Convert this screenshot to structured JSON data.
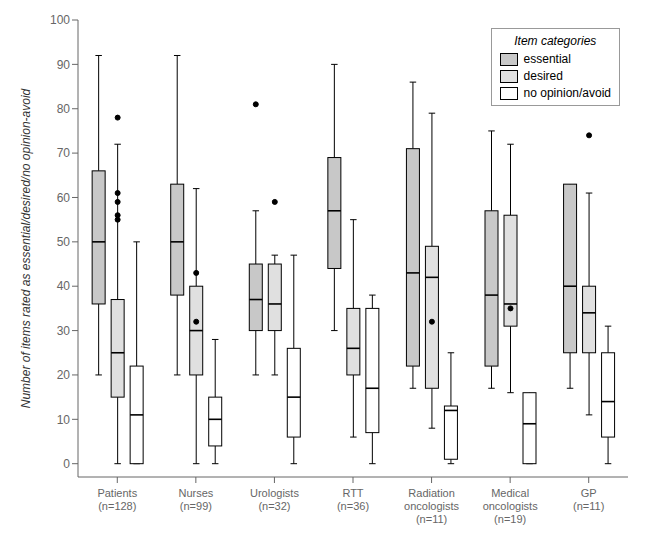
{
  "chart_data": {
    "type": "box",
    "categories": [
      "Patients\n(n=128)",
      "Nurses\n(n=99)",
      "Urologists\n(n=32)",
      "RTT\n(n=36)",
      "Radiation\noncologists\n(n=11)",
      "Medical\noncologists\n(n=19)",
      "GP\n(n=11)"
    ],
    "series": [
      {
        "name": "essential",
        "color": "#c8c8c8",
        "values": [
          {
            "q1": 36,
            "median": 50,
            "q3": 66,
            "whislo": 20,
            "whishi": 92,
            "fliers": []
          },
          {
            "q1": 38,
            "median": 50,
            "q3": 63,
            "whislo": 20,
            "whishi": 92,
            "fliers": []
          },
          {
            "q1": 30,
            "median": 37,
            "q3": 45,
            "whislo": 20,
            "whishi": 57,
            "fliers": [
              81
            ]
          },
          {
            "q1": 44,
            "median": 57,
            "q3": 69,
            "whislo": 30,
            "whishi": 90,
            "fliers": []
          },
          {
            "q1": 22,
            "median": 43,
            "q3": 71,
            "whislo": 17,
            "whishi": 86,
            "fliers": []
          },
          {
            "q1": 22,
            "median": 38,
            "q3": 57,
            "whislo": 17,
            "whishi": 75,
            "fliers": []
          },
          {
            "q1": 25,
            "median": 40,
            "q3": 63,
            "whislo": 17,
            "whishi": 61,
            "fliers": []
          }
        ]
      },
      {
        "name": "desired",
        "color": "#e0e0e0",
        "values": [
          {
            "q1": 15,
            "median": 25,
            "q3": 37,
            "whislo": 0,
            "whishi": 72,
            "fliers": [
              78,
              61,
              59,
              56,
              55
            ]
          },
          {
            "q1": 20,
            "median": 30,
            "q3": 40,
            "whislo": 0,
            "whishi": 62,
            "fliers": [
              43,
              32
            ]
          },
          {
            "q1": 30,
            "median": 36,
            "q3": 45,
            "whislo": 20,
            "whishi": 47,
            "fliers": [
              59
            ]
          },
          {
            "q1": 20,
            "median": 26,
            "q3": 35,
            "whislo": 6,
            "whishi": 55,
            "fliers": []
          },
          {
            "q1": 17,
            "median": 42,
            "q3": 49,
            "whislo": 8,
            "whishi": 79,
            "fliers": [
              32
            ]
          },
          {
            "q1": 31,
            "median": 36,
            "q3": 56,
            "whislo": 16,
            "whishi": 72,
            "fliers": [
              35
            ]
          },
          {
            "q1": 25,
            "median": 34,
            "q3": 40,
            "whislo": 11,
            "whishi": 61,
            "fliers": [
              74
            ]
          }
        ]
      },
      {
        "name": "no opinion/avoid",
        "color": "#ffffff",
        "values": [
          {
            "q1": 0,
            "median": 11,
            "q3": 22,
            "whislo": 0,
            "whishi": 50,
            "fliers": []
          },
          {
            "q1": 4,
            "median": 10,
            "q3": 15,
            "whislo": 0,
            "whishi": 28,
            "fliers": []
          },
          {
            "q1": 6,
            "median": 15,
            "q3": 26,
            "whislo": 0,
            "whishi": 47,
            "fliers": []
          },
          {
            "q1": 7,
            "median": 17,
            "q3": 35,
            "whislo": 0,
            "whishi": 38,
            "fliers": []
          },
          {
            "q1": 1,
            "median": 12,
            "q3": 13,
            "whislo": 0,
            "whishi": 25,
            "fliers": []
          },
          {
            "q1": 0,
            "median": 9,
            "q3": 16,
            "whislo": 0,
            "whishi": 15,
            "fliers": []
          },
          {
            "q1": 6,
            "median": 14,
            "q3": 25,
            "whislo": 0,
            "whishi": 31,
            "fliers": []
          }
        ]
      }
    ],
    "ylabel": "Number of items rated as essential/desired/no opinion-avoid",
    "ylim": [
      -3,
      100
    ],
    "yticks": [
      0,
      10,
      20,
      30,
      40,
      50,
      60,
      70,
      80,
      90,
      100
    ],
    "grid": false,
    "legend": "upper right",
    "legend_title": "Item categories"
  }
}
